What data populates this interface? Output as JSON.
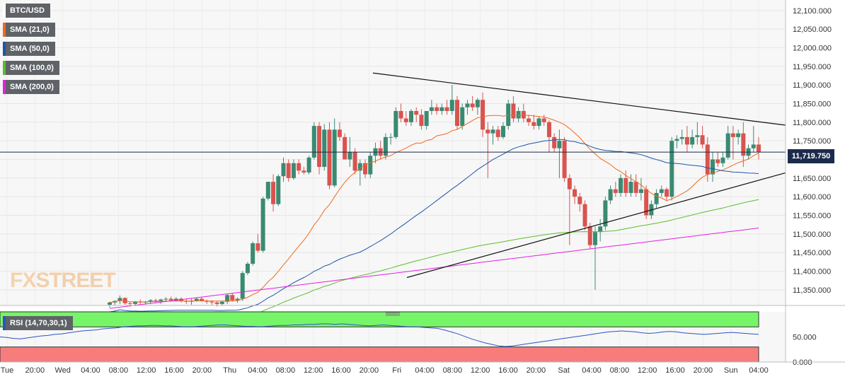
{
  "chart_data": {
    "type": "candlestick",
    "symbol": "BTC/USD",
    "last_price": "11,719.750",
    "indicators": [
      {
        "name": "SMA (21,0)",
        "color": "#f06a1b"
      },
      {
        "name": "SMA (50,0)",
        "color": "#1d55a6"
      },
      {
        "name": "SMA (100,0)",
        "color": "#5cbd2b"
      },
      {
        "name": "SMA (200,0)",
        "color": "#e61fe0"
      }
    ],
    "y_ticks": [
      "12,100.000",
      "12,050.000",
      "12,000.000",
      "11,950.000",
      "11,900.000",
      "11,850.000",
      "11,800.000",
      "11,750.000",
      "11,700.000",
      "11,650.000",
      "11,600.000",
      "11,550.000",
      "11,500.000",
      "11,450.000",
      "11,400.000",
      "11,350.000"
    ],
    "ylim": [
      11308,
      12128
    ],
    "x_ticks": [
      "Tue",
      "20:00",
      "Wed",
      "04:00",
      "08:00",
      "12:00",
      "16:00",
      "20:00",
      "Thu",
      "04:00",
      "08:00",
      "12:00",
      "16:00",
      "20:00",
      "Fri",
      "04:00",
      "08:00",
      "12:00",
      "16:00",
      "20:00",
      "Sat",
      "04:00",
      "08:00",
      "12:00",
      "16:00",
      "20:00",
      "Sun",
      "04:00"
    ],
    "rsi": {
      "label": "RSI (14,70,30,1)",
      "upper": 70,
      "lower": 30,
      "y_ticks": [
        "50.000",
        "0.000"
      ],
      "values": [
        50,
        49,
        47,
        46,
        48,
        50,
        52,
        53,
        55,
        56,
        58,
        60,
        62,
        63,
        64,
        66,
        67,
        68,
        70,
        71,
        72,
        72,
        73,
        73,
        72,
        72,
        71,
        70,
        70,
        71,
        72,
        73,
        74,
        74,
        73,
        72,
        71,
        71,
        70,
        71,
        72,
        73,
        73,
        74,
        74,
        75,
        75,
        76,
        76,
        75,
        76,
        75,
        74,
        73,
        72,
        73,
        74,
        73,
        72,
        71,
        70,
        70,
        69,
        68,
        67,
        64,
        60,
        56,
        51,
        46,
        42,
        38,
        35,
        32,
        31,
        32,
        34,
        36,
        38,
        40,
        42,
        44,
        46,
        48,
        50,
        52,
        54,
        56,
        58,
        60,
        61,
        62,
        61,
        60,
        58,
        57,
        58,
        60,
        61,
        60,
        58,
        57,
        56,
        55,
        56,
        57,
        58,
        59,
        58,
        57,
        56,
        55
      ]
    },
    "candles": [
      [
        11310,
        11318,
        11302,
        11316
      ],
      [
        11316,
        11322,
        11308,
        11320
      ],
      [
        11320,
        11335,
        11312,
        11328
      ],
      [
        11328,
        11330,
        11310,
        11314
      ],
      [
        11314,
        11318,
        11305,
        11312
      ],
      [
        11312,
        11320,
        11306,
        11318
      ],
      [
        11318,
        11324,
        11310,
        11316
      ],
      [
        11316,
        11320,
        11310,
        11318
      ],
      [
        11318,
        11325,
        11312,
        11322
      ],
      [
        11322,
        11326,
        11314,
        11320
      ],
      [
        11320,
        11326,
        11312,
        11324
      ],
      [
        11324,
        11330,
        11318,
        11326
      ],
      [
        11326,
        11332,
        11318,
        11322
      ],
      [
        11322,
        11330,
        11318,
        11326
      ],
      [
        11326,
        11330,
        11316,
        11320
      ],
      [
        11320,
        11325,
        11312,
        11318
      ],
      [
        11318,
        11326,
        11310,
        11320
      ],
      [
        11320,
        11330,
        11318,
        11326
      ],
      [
        11326,
        11330,
        11318,
        11320
      ],
      [
        11320,
        11324,
        11312,
        11318
      ],
      [
        11318,
        11322,
        11310,
        11316
      ],
      [
        11316,
        11320,
        11305,
        11312
      ],
      [
        11312,
        11320,
        11308,
        11318
      ],
      [
        11318,
        11340,
        11312,
        11336
      ],
      [
        11336,
        11342,
        11318,
        11322
      ],
      [
        11322,
        11330,
        11315,
        11326
      ],
      [
        11326,
        11400,
        11320,
        11395
      ],
      [
        11395,
        11425,
        11390,
        11420
      ],
      [
        11420,
        11480,
        11415,
        11475
      ],
      [
        11475,
        11500,
        11450,
        11455
      ],
      [
        11455,
        11600,
        11450,
        11595
      ],
      [
        11595,
        11640,
        11590,
        11640
      ],
      [
        11640,
        11660,
        11560,
        11580
      ],
      [
        11580,
        11660,
        11575,
        11655
      ],
      [
        11655,
        11705,
        11640,
        11690
      ],
      [
        11690,
        11700,
        11640,
        11650
      ],
      [
        11650,
        11700,
        11645,
        11690
      ],
      [
        11690,
        11700,
        11660,
        11670
      ],
      [
        11670,
        11680,
        11660,
        11665
      ],
      [
        11665,
        11710,
        11660,
        11705
      ],
      [
        11705,
        11800,
        11700,
        11790
      ],
      [
        11790,
        11800,
        11660,
        11680
      ],
      [
        11680,
        11795,
        11670,
        11780
      ],
      [
        11780,
        11800,
        11620,
        11630
      ],
      [
        11630,
        11810,
        11625,
        11780
      ],
      [
        11780,
        11800,
        11750,
        11760
      ],
      [
        11760,
        11770,
        11700,
        11700
      ],
      [
        11700,
        11760,
        11680,
        11720
      ],
      [
        11720,
        11730,
        11660,
        11670
      ],
      [
        11670,
        11700,
        11630,
        11690
      ],
      [
        11690,
        11700,
        11650,
        11660
      ],
      [
        11660,
        11720,
        11650,
        11710
      ],
      [
        11710,
        11745,
        11690,
        11730
      ],
      [
        11730,
        11750,
        11700,
        11710
      ],
      [
        11710,
        11770,
        11700,
        11760
      ],
      [
        11760,
        11770,
        11740,
        11760
      ],
      [
        11760,
        11840,
        11755,
        11830
      ],
      [
        11830,
        11850,
        11800,
        11810
      ],
      [
        11810,
        11830,
        11790,
        11800
      ],
      [
        11800,
        11835,
        11790,
        11830
      ],
      [
        11830,
        11840,
        11800,
        11820
      ],
      [
        11820,
        11835,
        11780,
        11790
      ],
      [
        11790,
        11830,
        11780,
        11830
      ],
      [
        11830,
        11860,
        11820,
        11840
      ],
      [
        11840,
        11850,
        11820,
        11830
      ],
      [
        11830,
        11850,
        11820,
        11840
      ],
      [
        11840,
        11860,
        11820,
        11830
      ],
      [
        11830,
        11900,
        11820,
        11860
      ],
      [
        11860,
        11870,
        11780,
        11790
      ],
      [
        11790,
        11850,
        11780,
        11840
      ],
      [
        11840,
        11860,
        11820,
        11850
      ],
      [
        11850,
        11870,
        11830,
        11840
      ],
      [
        11840,
        11865,
        11820,
        11860
      ],
      [
        11860,
        11880,
        11760,
        11780
      ],
      [
        11780,
        11800,
        11650,
        11770
      ],
      [
        11770,
        11790,
        11740,
        11780
      ],
      [
        11780,
        11790,
        11750,
        11760
      ],
      [
        11760,
        11800,
        11755,
        11790
      ],
      [
        11790,
        11860,
        11780,
        11850
      ],
      [
        11850,
        11870,
        11800,
        11810
      ],
      [
        11810,
        11840,
        11800,
        11830
      ],
      [
        11830,
        11850,
        11800,
        11810
      ],
      [
        11810,
        11820,
        11790,
        11800
      ],
      [
        11800,
        11820,
        11780,
        11790
      ],
      [
        11790,
        11815,
        11780,
        11810
      ],
      [
        11810,
        11820,
        11790,
        11800
      ],
      [
        11800,
        11805,
        11720,
        11760
      ],
      [
        11760,
        11770,
        11720,
        11730
      ],
      [
        11730,
        11780,
        11650,
        11750
      ],
      [
        11750,
        11760,
        11640,
        11650
      ],
      [
        11650,
        11660,
        11470,
        11620
      ],
      [
        11620,
        11630,
        11580,
        11600
      ],
      [
        11600,
        11610,
        11560,
        11580
      ],
      [
        11580,
        11590,
        11510,
        11520
      ],
      [
        11520,
        11530,
        11460,
        11470
      ],
      [
        11470,
        11520,
        11350,
        11505
      ],
      [
        11505,
        11540,
        11480,
        11520
      ],
      [
        11520,
        11600,
        11510,
        11590
      ],
      [
        11590,
        11630,
        11580,
        11620
      ],
      [
        11620,
        11640,
        11600,
        11610
      ],
      [
        11610,
        11660,
        11600,
        11650
      ],
      [
        11650,
        11670,
        11600,
        11610
      ],
      [
        11610,
        11660,
        11600,
        11640
      ],
      [
        11640,
        11660,
        11600,
        11610
      ],
      [
        11610,
        11650,
        11590,
        11620
      ],
      [
        11620,
        11630,
        11540,
        11550
      ],
      [
        11550,
        11590,
        11540,
        11580
      ],
      [
        11580,
        11620,
        11570,
        11610
      ],
      [
        11610,
        11630,
        11600,
        11620
      ],
      [
        11620,
        11625,
        11590,
        11600
      ],
      [
        11600,
        11760,
        11590,
        11750
      ],
      [
        11750,
        11765,
        11730,
        11755
      ],
      [
        11755,
        11780,
        11740,
        11760
      ],
      [
        11760,
        11790,
        11720,
        11740
      ],
      [
        11740,
        11780,
        11730,
        11760
      ],
      [
        11760,
        11800,
        11740,
        11765
      ],
      [
        11765,
        11790,
        11730,
        11740
      ],
      [
        11740,
        11760,
        11640,
        11660
      ],
      [
        11660,
        11720,
        11640,
        11700
      ],
      [
        11700,
        11720,
        11680,
        11690
      ],
      [
        11690,
        11720,
        11680,
        11705
      ],
      [
        11705,
        11790,
        11700,
        11770
      ],
      [
        11770,
        11790,
        11700,
        11760
      ],
      [
        11760,
        11780,
        11740,
        11770
      ],
      [
        11770,
        11800,
        11680,
        11710
      ],
      [
        11710,
        11740,
        11700,
        11730
      ],
      [
        11730,
        11790,
        11720,
        11740
      ],
      [
        11740,
        11760,
        11700,
        11720
      ]
    ]
  },
  "watermark": {
    "part1": "FX",
    "part2": "STREET"
  }
}
